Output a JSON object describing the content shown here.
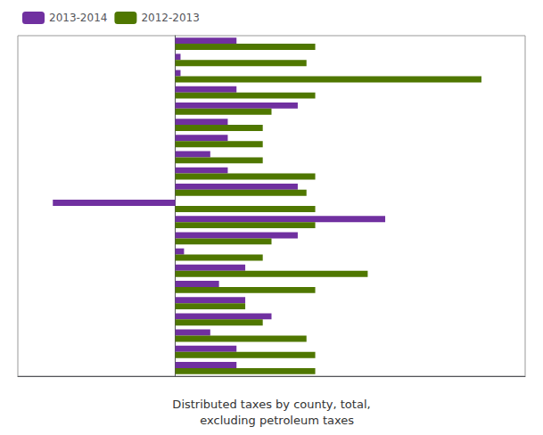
{
  "chart_data": {
    "type": "bar",
    "orientation": "horizontal",
    "categories": [
      null,
      null,
      null,
      null,
      null,
      null,
      null,
      null,
      null,
      null,
      null,
      null,
      null,
      null,
      null,
      null,
      null,
      null,
      null,
      null,
      null
    ],
    "series": [
      {
        "name": "2013-2014",
        "color": "#7030a0",
        "values": [
          3.5,
          0.3,
          0.3,
          3.5,
          7.0,
          3.0,
          3.0,
          2.0,
          3.0,
          7.0,
          -7.0,
          12.0,
          7.0,
          0.5,
          4.0,
          2.5,
          4.0,
          5.5,
          2.0,
          3.5,
          3.5
        ]
      },
      {
        "name": "2012-2013",
        "color": "#4f7700",
        "values": [
          8.0,
          7.5,
          17.5,
          8.0,
          5.5,
          5.0,
          5.0,
          5.0,
          8.0,
          7.5,
          8.0,
          8.0,
          5.5,
          5.0,
          11.0,
          8.0,
          4.0,
          5.0,
          7.5,
          8.0,
          8.0
        ]
      }
    ],
    "annotations": [
      "Distributed taxes by county, total,",
      "   excluding petroleum taxes"
    ],
    "xlim": [
      -9,
      20
    ],
    "tick_labels": false,
    "grid": false,
    "legend": "upper left"
  }
}
